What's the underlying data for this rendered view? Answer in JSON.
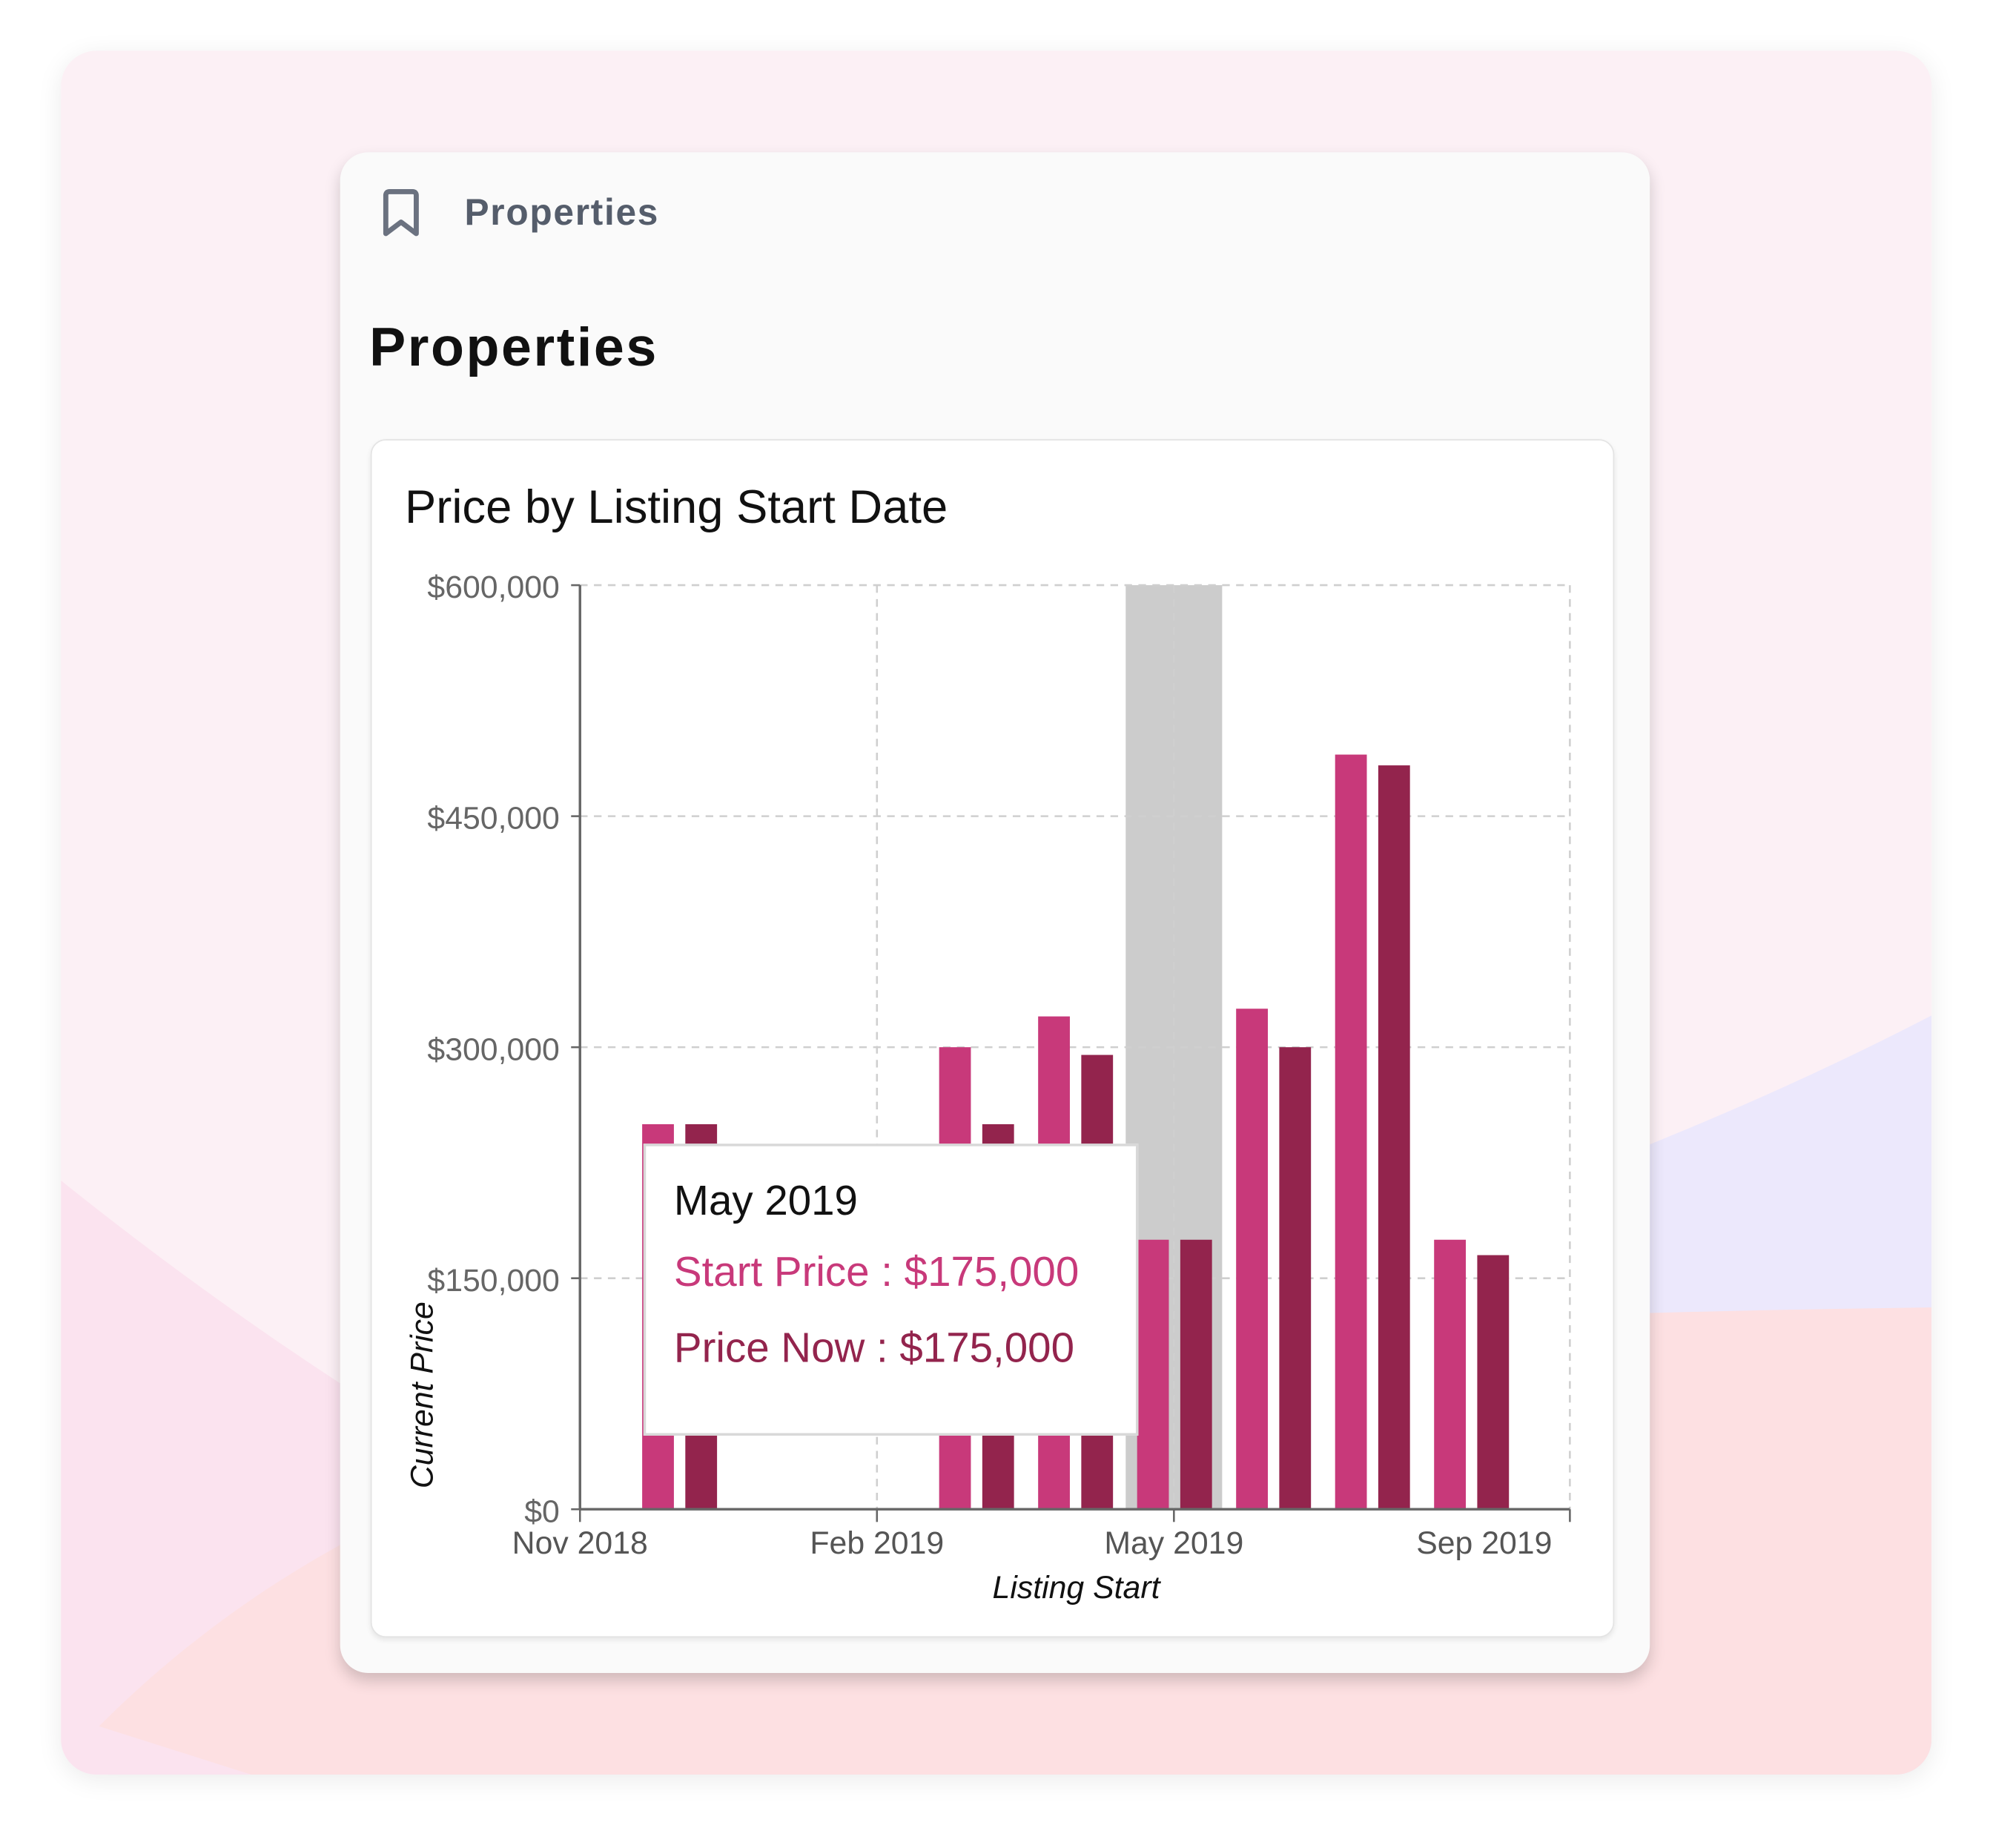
{
  "breadcrumb": {
    "icon": "bookmark-icon",
    "label": "Properties"
  },
  "page_title": "Properties",
  "chart_data": {
    "type": "bar",
    "title": "Price by Listing Start Date",
    "xlabel": "Listing Start",
    "ylabel": "Current Price",
    "ylim": [
      0,
      600000
    ],
    "yticks": [
      "$0",
      "$150,000",
      "$300,000",
      "$450,000",
      "$600,000"
    ],
    "ytick_values": [
      0,
      150000,
      300000,
      450000,
      600000
    ],
    "xticks": [
      "Nov 2018",
      "Feb 2019",
      "May 2019",
      "Sep 2019"
    ],
    "grid": true,
    "categories": [
      "Dec 2018",
      "Mar 2019",
      "Apr 2019",
      "May 2019",
      "Jun 2019",
      "Jul 2019",
      "Aug 2019"
    ],
    "series": [
      {
        "name": "Start Price",
        "color": "#c8397a",
        "values": [
          250000,
          300000,
          320000,
          175000,
          325000,
          490000,
          175000
        ]
      },
      {
        "name": "Price Now",
        "color": "#93244d",
        "values": [
          250000,
          250000,
          295000,
          175000,
          300000,
          483000,
          165000
        ]
      }
    ],
    "highlighted": "May 2019",
    "tooltip": {
      "title": "May 2019",
      "start_line": "Start Price : $175,000",
      "now_line": "Price Now : $175,000"
    }
  }
}
